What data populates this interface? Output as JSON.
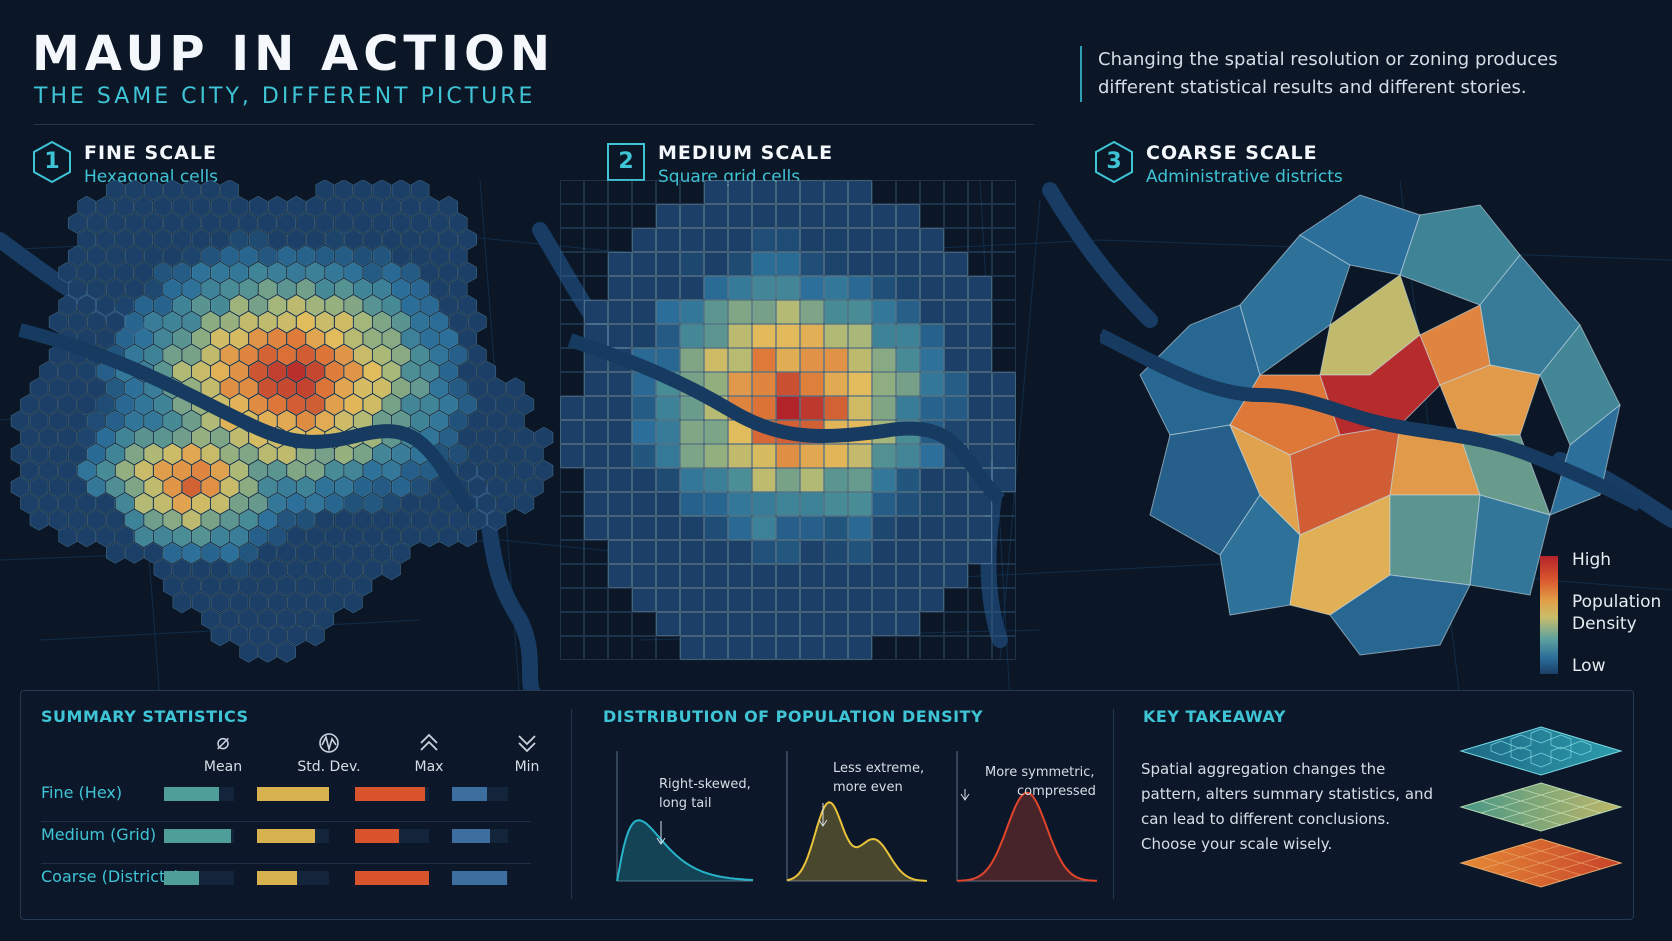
{
  "header": {
    "title": "MAUP IN ACTION",
    "subtitle": "THE SAME CITY, DIFFERENT PICTURE",
    "intro": "Changing the spatial resolution or zoning produces different statistical results and different stories."
  },
  "panels": [
    {
      "number": "1",
      "title": "FINE SCALE",
      "subtitle": "Hexagonal cells"
    },
    {
      "number": "2",
      "title": "MEDIUM SCALE",
      "subtitle": "Square grid cells"
    },
    {
      "number": "3",
      "title": "COARSE SCALE",
      "subtitle": "Administrative districts"
    }
  ],
  "legend": {
    "high": "High",
    "title_line1": "Population",
    "title_line2": "Density",
    "low": "Low"
  },
  "summary": {
    "title": "SUMMARY STATISTICS",
    "columns": [
      {
        "label": "Mean",
        "icon": "diameter-icon"
      },
      {
        "label": "Std. Dev.",
        "icon": "std-dev-icon"
      },
      {
        "label": "Max",
        "icon": "chevron-up-icon"
      },
      {
        "label": "Min",
        "icon": "chevron-down-icon"
      }
    ],
    "rows": [
      {
        "label": "Fine (Hex)",
        "values": [
          0.78,
          1.0,
          0.95,
          0.62
        ]
      },
      {
        "label": "Medium (Grid)",
        "values": [
          0.95,
          0.8,
          0.6,
          0.68
        ]
      },
      {
        "label": "Coarse (Districts)",
        "values": [
          0.5,
          0.55,
          1.0,
          0.98
        ]
      }
    ]
  },
  "distribution": {
    "title": "DISTRIBUTION OF POPULATION DENSITY",
    "curves": [
      {
        "note_line1": "Right-skewed,",
        "note_line2": "long tail",
        "color": "#27b3c9"
      },
      {
        "note_line1": "Less extreme,",
        "note_line2": "more even",
        "color": "#e9c23a"
      },
      {
        "note_line1": "More symmetric,",
        "note_line2": "compressed",
        "color": "#e0452b"
      }
    ]
  },
  "takeaway": {
    "title": "KEY TAKEAWAY",
    "text": "Spatial aggregation changes the pattern, alters summary statistics, and can lead to different conclusions. Choose your scale wisely."
  },
  "colors": {
    "accent": "#3fc4d6",
    "high": "#b3232a",
    "low": "#1b3f66"
  }
}
